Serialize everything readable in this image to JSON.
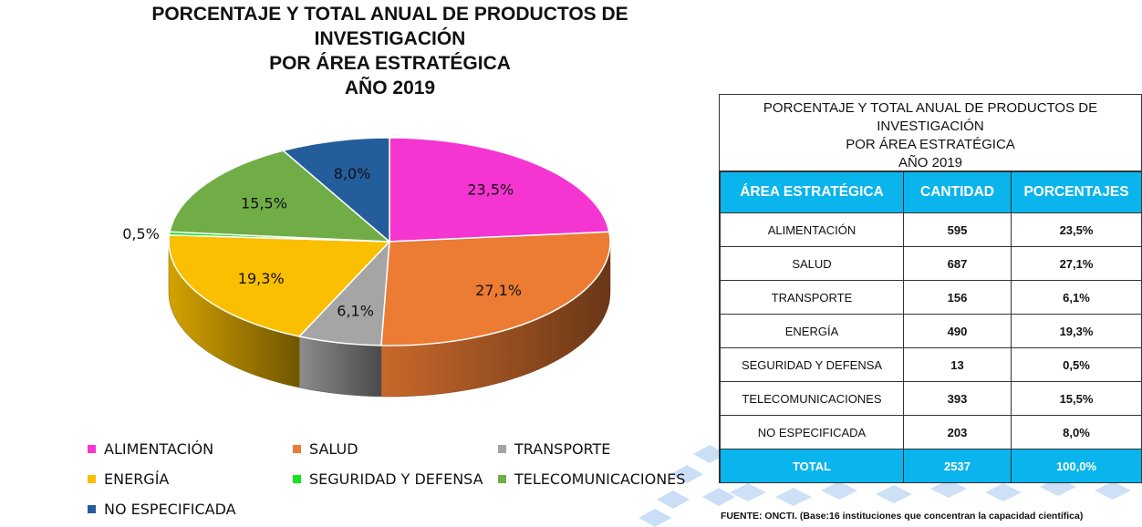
{
  "title_lines": [
    "PORCENTAJE Y TOTAL ANUAL DE PRODUCTOS DE",
    "INVESTIGACIÓN",
    "POR ÁREA ESTRATÉGICA",
    "AÑO 2019"
  ],
  "colors": {
    "alimentacion": "#f535d2",
    "salud": "#ec7b33",
    "transporte": "#a5a5a5",
    "energia": "#f9bf00",
    "seguridad": "#12e61a",
    "telecomunicaciones": "#71ad47",
    "no_especificada": "#245d9b",
    "table_header": "#0ab4ec"
  },
  "chart_data": {
    "type": "pie",
    "title": "PORCENTAJE Y TOTAL ANUAL DE PRODUCTOS DE INVESTIGACIÓN POR ÁREA ESTRATÉGICA AÑO 2019",
    "legend_position": "bottom",
    "slices": [
      {
        "name": "ALIMENTACIÓN",
        "value": 23.5,
        "label": "23,5%",
        "color": "#f535d2"
      },
      {
        "name": "SALUD",
        "value": 27.1,
        "label": "27,1%",
        "color": "#ec7b33"
      },
      {
        "name": "TRANSPORTE",
        "value": 6.1,
        "label": "6,1%",
        "color": "#a5a5a5"
      },
      {
        "name": "ENERGÍA",
        "value": 19.3,
        "label": "19,3%",
        "color": "#f9bf00"
      },
      {
        "name": "SEGURIDAD Y DEFENSA",
        "value": 0.5,
        "label": "0,5%",
        "color": "#12e61a"
      },
      {
        "name": "TELECOMUNICACIONES",
        "value": 15.5,
        "label": "15,5%",
        "color": "#71ad47"
      },
      {
        "name": "NO ESPECIFICADA",
        "value": 8.0,
        "label": "8,0%",
        "color": "#245d9b"
      }
    ]
  },
  "table": {
    "title_lines": [
      "PORCENTAJE Y TOTAL ANUAL DE PRODUCTOS DE",
      "INVESTIGACIÓN",
      "POR ÁREA ESTRATÉGICA",
      "AÑO 2019"
    ],
    "headers": [
      "ÁREA ESTRATÉGICA",
      "CANTIDAD",
      "PORCENTAJES"
    ],
    "rows": [
      {
        "area": "ALIMENTACIÓN",
        "cantidad": "595",
        "porcentaje": "23,5%"
      },
      {
        "area": "SALUD",
        "cantidad": "687",
        "porcentaje": "27,1%"
      },
      {
        "area": "TRANSPORTE",
        "cantidad": "156",
        "porcentaje": "6,1%"
      },
      {
        "area": "ENERGÍA",
        "cantidad": "490",
        "porcentaje": "19,3%"
      },
      {
        "area": "SEGURIDAD Y DEFENSA",
        "cantidad": "13",
        "porcentaje": "0,5%"
      },
      {
        "area": "TELECOMUNICACIONES",
        "cantidad": "393",
        "porcentaje": "15,5%"
      },
      {
        "area": "NO ESPECIFICADA",
        "cantidad": "203",
        "porcentaje": "8,0%"
      }
    ],
    "total": {
      "area": "TOTAL",
      "cantidad": "2537",
      "porcentaje": "100,0%"
    }
  },
  "source": "FUENTE: ONCTI. (Base:16 instituciones que concentran la capacidad científica)"
}
